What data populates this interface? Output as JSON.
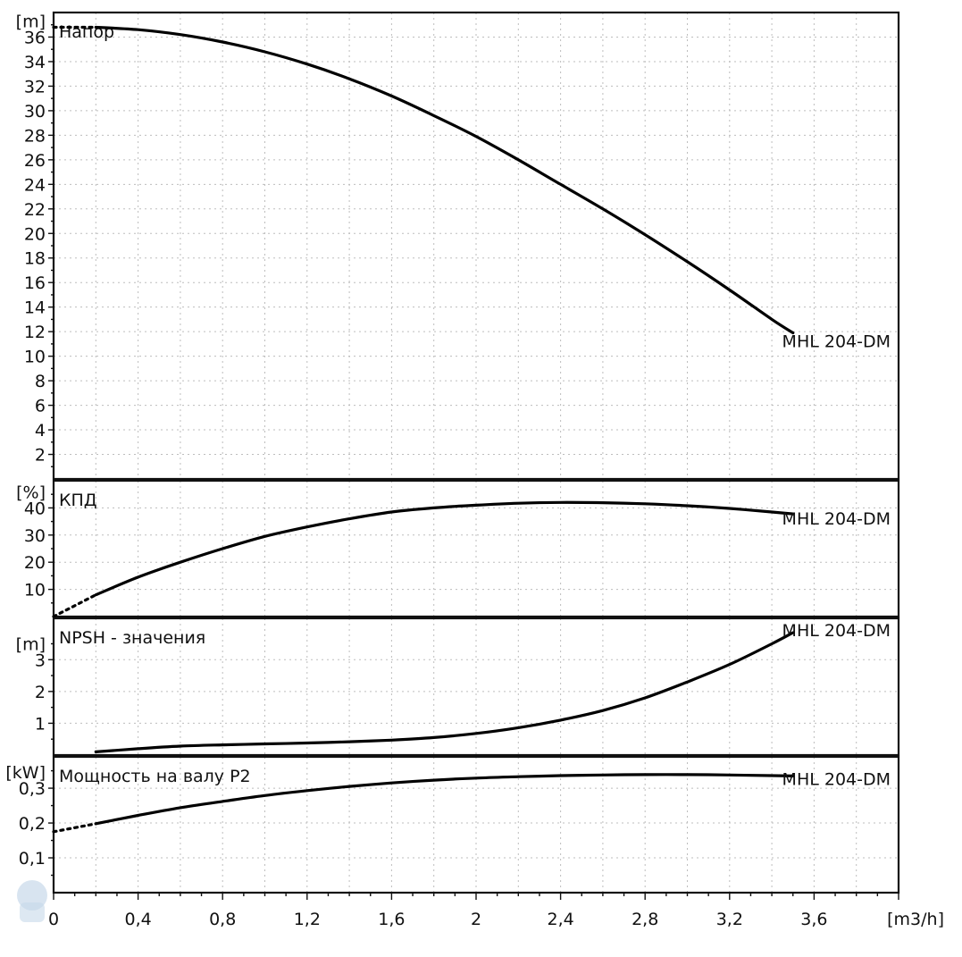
{
  "chart_data": [
    {
      "type": "line",
      "title": "Напор",
      "ylabel": "[m]",
      "xlabel": "[m3/h]",
      "xlim": [
        0,
        4.0
      ],
      "ylim": [
        0,
        38
      ],
      "yticks": [
        2,
        4,
        6,
        8,
        10,
        12,
        14,
        16,
        18,
        20,
        22,
        24,
        26,
        28,
        30,
        32,
        34,
        36
      ],
      "series": [
        {
          "name": "MHL 204-DM",
          "x": [
            0.2,
            0.4,
            0.6,
            0.8,
            1.0,
            1.2,
            1.4,
            1.6,
            1.8,
            2.0,
            2.2,
            2.4,
            2.6,
            2.8,
            3.0,
            3.2,
            3.4,
            3.5
          ],
          "values": [
            36.8,
            36.6,
            36.2,
            35.6,
            34.8,
            33.8,
            32.6,
            31.2,
            29.6,
            27.9,
            26.0,
            24.0,
            22.0,
            19.9,
            17.7,
            15.4,
            13.0,
            11.9
          ],
          "dotted_start": [
            0,
            36.8
          ]
        }
      ]
    },
    {
      "type": "line",
      "title": "КПД",
      "ylabel": "[%]",
      "xlim": [
        0,
        4.0
      ],
      "ylim": [
        0,
        50
      ],
      "yticks": [
        10,
        20,
        30,
        40
      ],
      "series": [
        {
          "name": "MHL 204-DM",
          "x": [
            0.2,
            0.4,
            0.6,
            0.8,
            1.0,
            1.2,
            1.4,
            1.6,
            1.8,
            2.0,
            2.2,
            2.4,
            2.6,
            2.8,
            3.0,
            3.2,
            3.4,
            3.5
          ],
          "values": [
            8.0,
            14.5,
            20.0,
            25.0,
            29.5,
            33.0,
            36.0,
            38.5,
            40.0,
            41.0,
            41.7,
            42.0,
            41.9,
            41.5,
            40.8,
            39.8,
            38.5,
            37.8
          ],
          "dotted_start": [
            0,
            0
          ]
        }
      ]
    },
    {
      "type": "line",
      "title": "NPSH - значения",
      "ylabel": "[m]",
      "xlim": [
        0,
        4.0
      ],
      "ylim": [
        0,
        4.3
      ],
      "yticks": [
        1,
        2,
        3
      ],
      "series": [
        {
          "name": "MHL 204-DM",
          "x": [
            0.2,
            0.4,
            0.6,
            0.8,
            1.0,
            1.2,
            1.4,
            1.6,
            1.8,
            2.0,
            2.2,
            2.4,
            2.6,
            2.8,
            3.0,
            3.2,
            3.4,
            3.5
          ],
          "values": [
            0.1,
            0.2,
            0.28,
            0.32,
            0.35,
            0.38,
            0.42,
            0.47,
            0.55,
            0.68,
            0.86,
            1.1,
            1.4,
            1.8,
            2.3,
            2.85,
            3.5,
            3.85
          ]
        }
      ]
    },
    {
      "type": "line",
      "title": "Мощность на валу P2",
      "ylabel": "[kW]",
      "xlim": [
        0,
        4.0
      ],
      "ylim": [
        0,
        0.39
      ],
      "yticks": [
        0.1,
        0.2,
        0.3
      ],
      "xticks": [
        "0",
        "0,4",
        "0,8",
        "1,2",
        "1,6",
        "2",
        "2,4",
        "2,8",
        "3,2",
        "3,6"
      ],
      "xtick_values": [
        0,
        0.4,
        0.8,
        1.2,
        1.6,
        2.0,
        2.4,
        2.8,
        3.2,
        3.6
      ],
      "series": [
        {
          "name": "MHL 204-DM",
          "x": [
            0.2,
            0.4,
            0.6,
            0.8,
            1.0,
            1.2,
            1.4,
            1.6,
            1.8,
            2.0,
            2.2,
            2.4,
            2.6,
            2.8,
            3.0,
            3.2,
            3.4,
            3.5
          ],
          "values": [
            0.198,
            0.222,
            0.244,
            0.262,
            0.279,
            0.293,
            0.305,
            0.315,
            0.323,
            0.329,
            0.333,
            0.336,
            0.338,
            0.339,
            0.339,
            0.338,
            0.336,
            0.335
          ],
          "dotted_start": [
            0,
            0.175
          ]
        }
      ]
    }
  ],
  "labels": {
    "ytick_suffix_format": "comma-decimal"
  }
}
